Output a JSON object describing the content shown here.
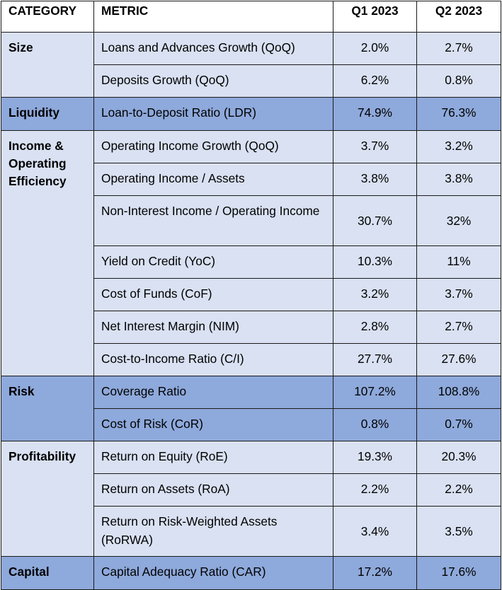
{
  "table": {
    "headers": [
      "CATEGORY",
      "METRIC",
      "Q1 2023",
      "Q2 2023"
    ],
    "sections": [
      {
        "category": "Size",
        "shade": "light",
        "rows": [
          {
            "metric": "Loans and Advances Growth (QoQ)",
            "q1": "2.0%",
            "q2": "2.7%"
          },
          {
            "metric": "Deposits Growth (QoQ)",
            "q1": "6.2%",
            "q2": "0.8%"
          }
        ]
      },
      {
        "category": "Liquidity",
        "shade": "dark",
        "rows": [
          {
            "metric": "Loan-to-Deposit Ratio (LDR)",
            "q1": "74.9%",
            "q2": "76.3%"
          }
        ]
      },
      {
        "category": "Income & Operating Efficiency",
        "shade": "light",
        "rows": [
          {
            "metric": "Operating Income Growth (QoQ)",
            "q1": "3.7%",
            "q2": "3.2%"
          },
          {
            "metric": "Operating Income / Assets",
            "q1": "3.8%",
            "q2": "3.8%"
          },
          {
            "metric": "Non-Interest Income / Operating Income",
            "q1": "30.7%",
            "q2": "32%"
          },
          {
            "metric": "Yield on Credit (YoC)",
            "q1": "10.3%",
            "q2": "11%"
          },
          {
            "metric": "Cost of Funds (CoF)",
            "q1": "3.2%",
            "q2": "3.7%"
          },
          {
            "metric": "Net Interest Margin (NIM)",
            "q1": "2.8%",
            "q2": "2.7%"
          },
          {
            "metric": "Cost-to-Income Ratio (C/I)",
            "q1": "27.7%",
            "q2": "27.6%"
          }
        ]
      },
      {
        "category": "Risk",
        "shade": "dark",
        "rows": [
          {
            "metric": "Coverage Ratio",
            "q1": "107.2%",
            "q2": "108.8%"
          },
          {
            "metric": "Cost of Risk (CoR)",
            "q1": "0.8%",
            "q2": "0.7%"
          }
        ]
      },
      {
        "category": "Profitability",
        "shade": "light",
        "rows": [
          {
            "metric": "Return on Equity (RoE)",
            "q1": "19.3%",
            "q2": "20.3%"
          },
          {
            "metric": "Return on Assets (RoA)",
            "q1": "2.2%",
            "q2": "2.2%"
          },
          {
            "metric": "Return on Risk-Weighted Assets (RoRWA)",
            "q1": "3.4%",
            "q2": "3.5%"
          }
        ]
      },
      {
        "category": "Capital",
        "shade": "dark",
        "rows": [
          {
            "metric": "Capital Adequacy Ratio (CAR)",
            "q1": "17.2%",
            "q2": "17.6%"
          }
        ]
      }
    ]
  },
  "colors": {
    "light_shade": "#d9e1f2",
    "dark_shade": "#8ea9db",
    "border": "#1a1a1a"
  }
}
